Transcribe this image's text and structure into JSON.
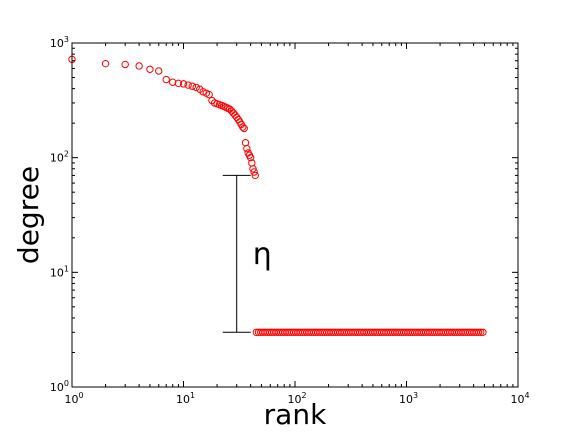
{
  "chart_data": {
    "type": "scatter",
    "title": "",
    "xlabel": "rank",
    "ylabel": "degree",
    "xscale": "log",
    "yscale": "log",
    "xlim": [
      1,
      10000
    ],
    "ylim": [
      1,
      1000
    ],
    "grid": false,
    "xticks": [
      {
        "value": 1,
        "base": "10",
        "exp": "0"
      },
      {
        "value": 10,
        "base": "10",
        "exp": "1"
      },
      {
        "value": 100,
        "base": "10",
        "exp": "2"
      },
      {
        "value": 1000,
        "base": "10",
        "exp": "3"
      },
      {
        "value": 10000,
        "base": "10",
        "exp": "4"
      }
    ],
    "yticks": [
      {
        "value": 1,
        "base": "10",
        "exp": "0"
      },
      {
        "value": 10,
        "base": "10",
        "exp": "1"
      },
      {
        "value": 100,
        "base": "10",
        "exp": "2"
      },
      {
        "value": 1000,
        "base": "10",
        "exp": "3"
      }
    ],
    "marker_color": "#ff0000",
    "series": [
      {
        "points": [
          [
            1,
            720
          ],
          [
            2,
            660
          ],
          [
            3,
            650
          ],
          [
            4,
            630
          ],
          [
            5,
            590
          ],
          [
            6,
            570
          ],
          [
            7,
            480
          ],
          [
            8,
            455
          ],
          [
            9,
            445
          ],
          [
            10,
            440
          ],
          [
            11,
            430
          ],
          [
            12,
            420
          ],
          [
            13,
            410
          ],
          [
            14,
            395
          ],
          [
            15,
            375
          ],
          [
            16,
            365
          ],
          [
            17,
            355
          ],
          [
            18,
            315
          ],
          [
            19,
            300
          ],
          [
            20,
            295
          ],
          [
            21,
            290
          ],
          [
            22,
            285
          ],
          [
            23,
            280
          ],
          [
            24,
            275
          ],
          [
            25,
            270
          ],
          [
            26,
            265
          ],
          [
            27,
            255
          ],
          [
            28,
            245
          ],
          [
            29,
            235
          ],
          [
            30,
            225
          ],
          [
            31,
            215
          ],
          [
            32,
            205
          ],
          [
            33,
            195
          ],
          [
            34,
            185
          ],
          [
            35,
            180
          ],
          [
            36,
            135
          ],
          [
            37,
            120
          ],
          [
            38,
            110
          ],
          [
            39,
            105
          ],
          [
            40,
            100
          ],
          [
            41,
            90
          ],
          [
            42,
            80
          ],
          [
            43,
            75
          ],
          [
            44,
            70
          ]
        ],
        "tail": {
          "x_start": 45,
          "x_end": 5000,
          "y": 3
        }
      }
    ],
    "annotation": {
      "label": "η",
      "x": 30,
      "y_low": 3,
      "y_high": 70,
      "color": "#000000"
    }
  }
}
